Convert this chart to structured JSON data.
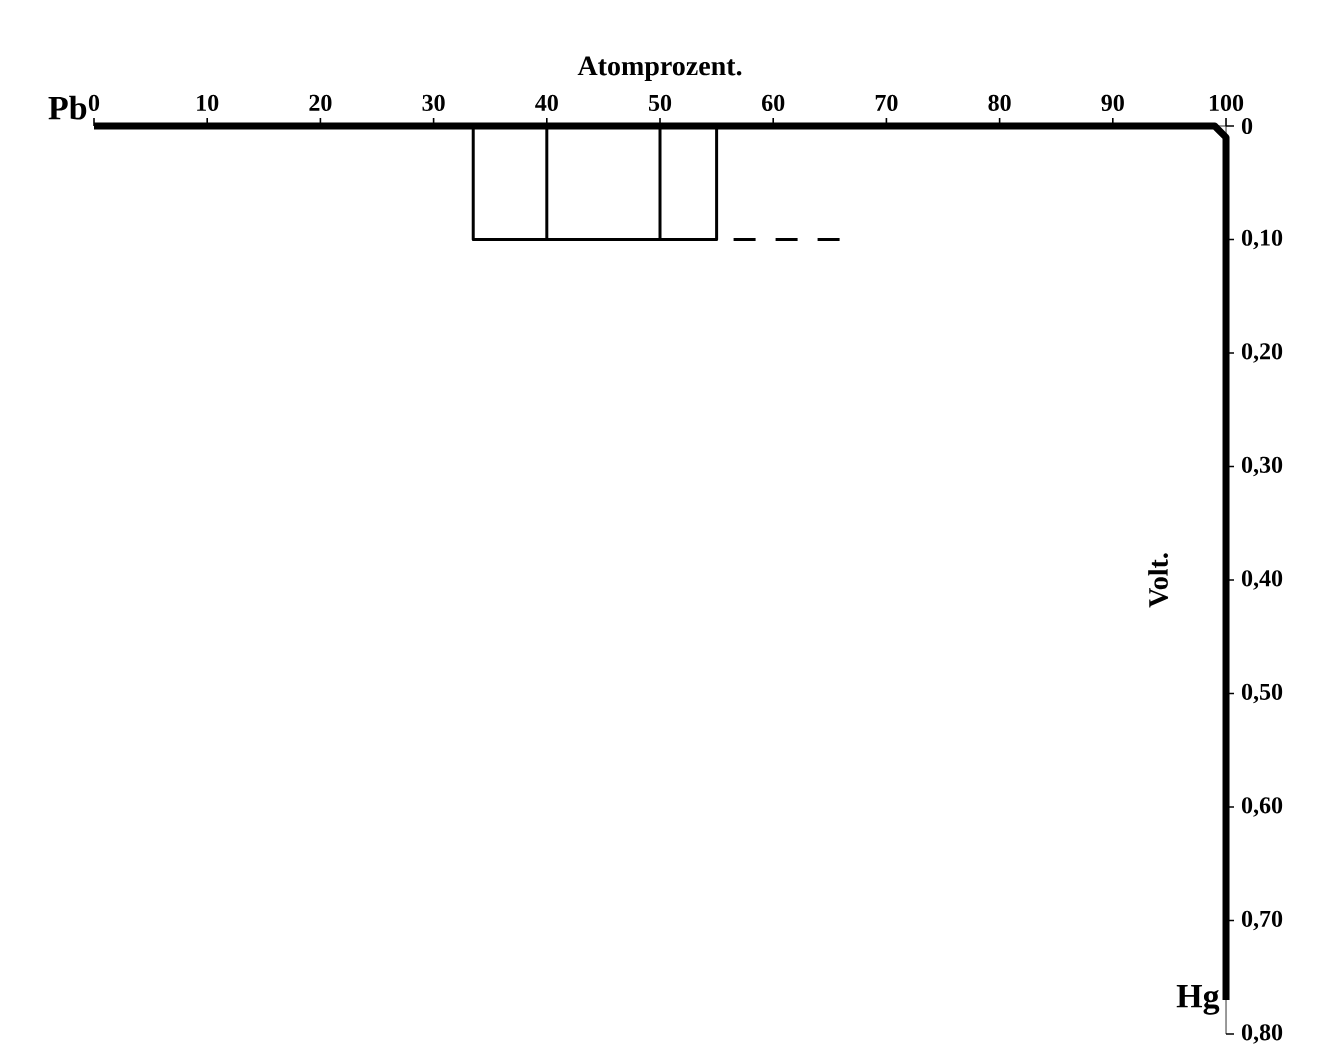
{
  "chart_data": {
    "type": "line",
    "xlabel": "Atomprozent.",
    "ylabel": "Volt.",
    "xlim": [
      0,
      100
    ],
    "ylim": [
      0.8,
      0
    ],
    "xticks": [
      0,
      10,
      20,
      30,
      40,
      50,
      60,
      70,
      80,
      90,
      100
    ],
    "yticks": [
      0,
      {
        "value": 0.1,
        "label": "0,10"
      },
      {
        "value": 0.2,
        "label": "0,20"
      },
      {
        "value": 0.3,
        "label": "0,30"
      },
      {
        "value": 0.4,
        "label": "0,40"
      },
      {
        "value": 0.5,
        "label": "0,50"
      },
      {
        "value": 0.6,
        "label": "0,60"
      },
      {
        "value": 0.7,
        "label": "0,70"
      },
      {
        "value": 0.8,
        "label": "0,80"
      }
    ],
    "series": [
      {
        "color": "#000000",
        "x": [
          0,
          99,
          100,
          100
        ],
        "values": [
          0,
          0,
          0.01,
          0.77
        ]
      },
      {
        "color": "#000000",
        "x": [
          33.5,
          33.5,
          55,
          55
        ],
        "values": [
          0,
          0.1,
          0.1,
          0
        ]
      },
      {
        "color": "#000000",
        "x": [
          40,
          40
        ],
        "values": [
          0,
          0.1
        ]
      },
      {
        "color": "#000000",
        "x": [
          50,
          50
        ],
        "values": [
          0,
          0.1
        ]
      },
      {
        "color": "#000000",
        "x": [
          56.5,
          66
        ],
        "values": [
          0.1,
          0.1
        ],
        "line_style": "dashed"
      }
    ],
    "annotations": [
      {
        "text": "Pb",
        "x": 0,
        "y": 0
      },
      {
        "text": "Hg",
        "x": 100,
        "y": 0.77
      }
    ]
  }
}
